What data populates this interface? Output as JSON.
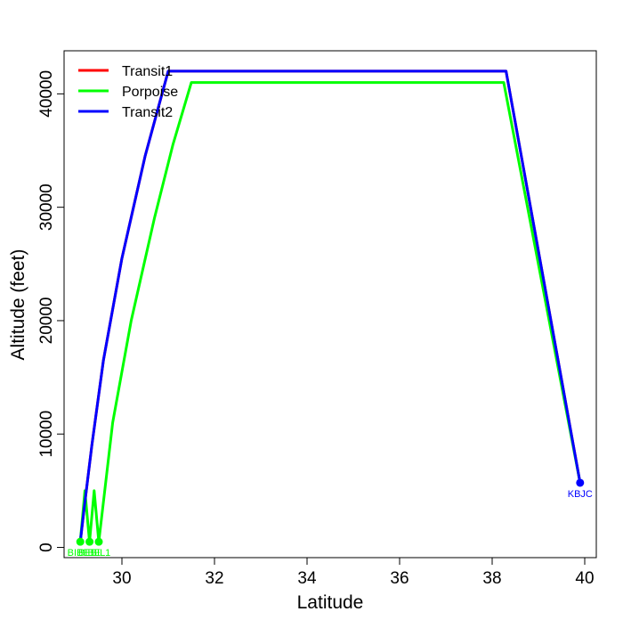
{
  "chart_data": {
    "type": "line",
    "title": "",
    "xlabel": "Latitude",
    "ylabel": "Altitude (feet)",
    "xlim": [
      28.75,
      40.25
    ],
    "ylim": [
      -900,
      43800
    ],
    "xticks": [
      30,
      32,
      34,
      36,
      38,
      40
    ],
    "xtick_labels": [
      "30",
      "32",
      "34",
      "36",
      "38",
      "40"
    ],
    "yticks": [
      0,
      10000,
      20000,
      30000,
      40000
    ],
    "ytick_labels": [
      "0",
      "10000",
      "20000",
      "30000",
      "40000"
    ],
    "grid": false,
    "legend_position": "top-left",
    "series": [
      {
        "name": "Transit1",
        "color": "#ff0000",
        "points": [
          [
            29.1,
            500
          ],
          [
            29.2,
            4000
          ],
          [
            29.35,
            9000
          ],
          [
            29.6,
            16500
          ],
          [
            30.0,
            25500
          ],
          [
            30.5,
            34500
          ],
          [
            31.0,
            42000
          ],
          [
            38.3,
            42000
          ],
          [
            39.9,
            5700
          ]
        ]
      },
      {
        "name": "Porpoise",
        "color": "#00ff00",
        "points": [
          [
            29.1,
            500
          ],
          [
            29.2,
            5000
          ],
          [
            29.3,
            500
          ],
          [
            29.4,
            5000
          ],
          [
            29.5,
            500
          ],
          [
            29.8,
            11000
          ],
          [
            30.2,
            20000
          ],
          [
            30.7,
            29000
          ],
          [
            31.1,
            35500
          ],
          [
            31.5,
            41000
          ],
          [
            38.25,
            41000
          ],
          [
            39.9,
            5700
          ]
        ]
      },
      {
        "name": "Transit2",
        "color": "#0000ff",
        "points": [
          [
            29.1,
            500
          ],
          [
            29.2,
            4000
          ],
          [
            29.35,
            9000
          ],
          [
            29.6,
            16500
          ],
          [
            30.0,
            25500
          ],
          [
            30.5,
            34500
          ],
          [
            31.0,
            42000
          ],
          [
            38.3,
            42000
          ],
          [
            39.9,
            5700
          ]
        ]
      }
    ],
    "markers": [
      {
        "label": "BIBE",
        "x": 29.1,
        "y": 500,
        "color": "#00ff00",
        "label_dx": -2
      },
      {
        "label": "BIBE",
        "x": 29.3,
        "y": 500,
        "color": "#00ff00",
        "label_dx": 0
      },
      {
        "label": "BIL1",
        "x": 29.5,
        "y": 500,
        "color": "#00ff00",
        "label_dx": 2
      },
      {
        "label": "KBJC",
        "x": 39.9,
        "y": 5700,
        "color": "#0000ff",
        "label_dx": 0
      }
    ]
  }
}
